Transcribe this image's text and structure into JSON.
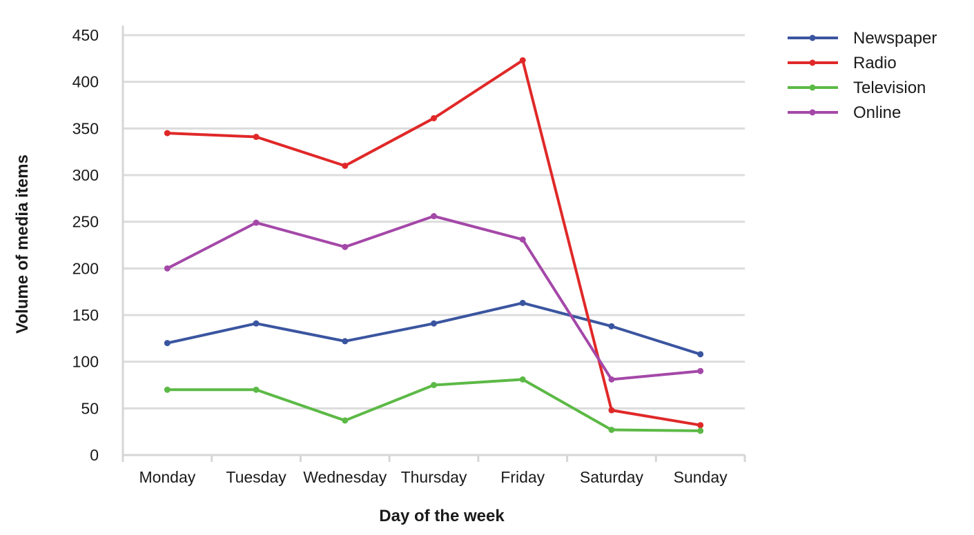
{
  "chart_data": {
    "type": "line",
    "title": "",
    "xlabel": "Day of the week",
    "ylabel": "Volume of media items",
    "categories": [
      "Monday",
      "Tuesday",
      "Wednesday",
      "Thursday",
      "Friday",
      "Saturday",
      "Sunday"
    ],
    "ylim": [
      0,
      450
    ],
    "yticks": [
      "0",
      "50",
      "100",
      "150",
      "200",
      "250",
      "300",
      "350",
      "400",
      "450"
    ],
    "grid": true,
    "legend_position": "top-right",
    "series": [
      {
        "name": "Newspaper",
        "color": "#3a55a0",
        "values": [
          120,
          141,
          122,
          141,
          163,
          138,
          108
        ]
      },
      {
        "name": "Radio",
        "color": "#e02828",
        "values": [
          345,
          341,
          310,
          361,
          423,
          48,
          32
        ]
      },
      {
        "name": "Television",
        "color": "#5cb946",
        "values": [
          70,
          70,
          37,
          75,
          81,
          27,
          26
        ]
      },
      {
        "name": "Online",
        "color": "#a448a8",
        "values": [
          200,
          249,
          223,
          256,
          231,
          81,
          90
        ]
      }
    ]
  }
}
